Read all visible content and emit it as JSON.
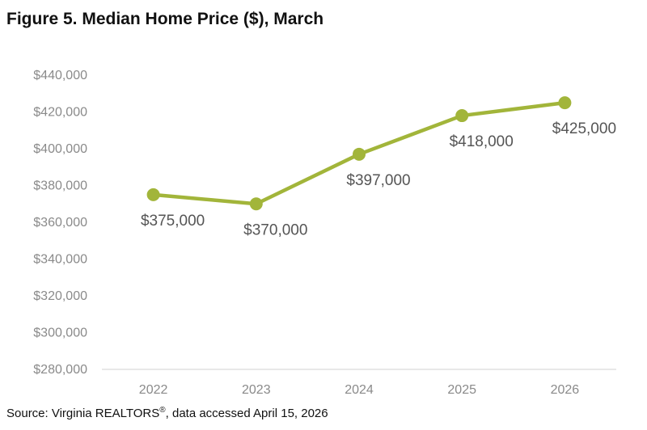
{
  "title": "Figure 5. Median Home Price ($), March",
  "source": {
    "prefix": "Source: Virginia REALTORS",
    "superscript": "®",
    "suffix": ", data accessed April 15, 2026"
  },
  "colors": {
    "series": "#a2b53a",
    "axis": "#d0d0d0",
    "tick_text": "#8a8a8a",
    "label_text": "#555555"
  },
  "chart_data": {
    "type": "line",
    "title": "Figure 5. Median Home Price ($), March",
    "categories": [
      "2022",
      "2023",
      "2024",
      "2025",
      "2026"
    ],
    "series": [
      {
        "values": [
          375000,
          370000,
          397000,
          418000,
          425000
        ]
      }
    ],
    "data_labels": [
      "$375,000",
      "$370,000",
      "$397,000",
      "$418,000",
      "$425,000"
    ],
    "ylim": [
      280000,
      440000
    ],
    "yticks": [
      280000,
      300000,
      320000,
      340000,
      360000,
      380000,
      400000,
      420000,
      440000
    ],
    "ytick_labels": [
      "$280,000",
      "$300,000",
      "$320,000",
      "$340,000",
      "$360,000",
      "$380,000",
      "$400,000",
      "$420,000",
      "$440,000"
    ],
    "grid": false,
    "legend": "none",
    "xlabel": "",
    "ylabel": ""
  }
}
